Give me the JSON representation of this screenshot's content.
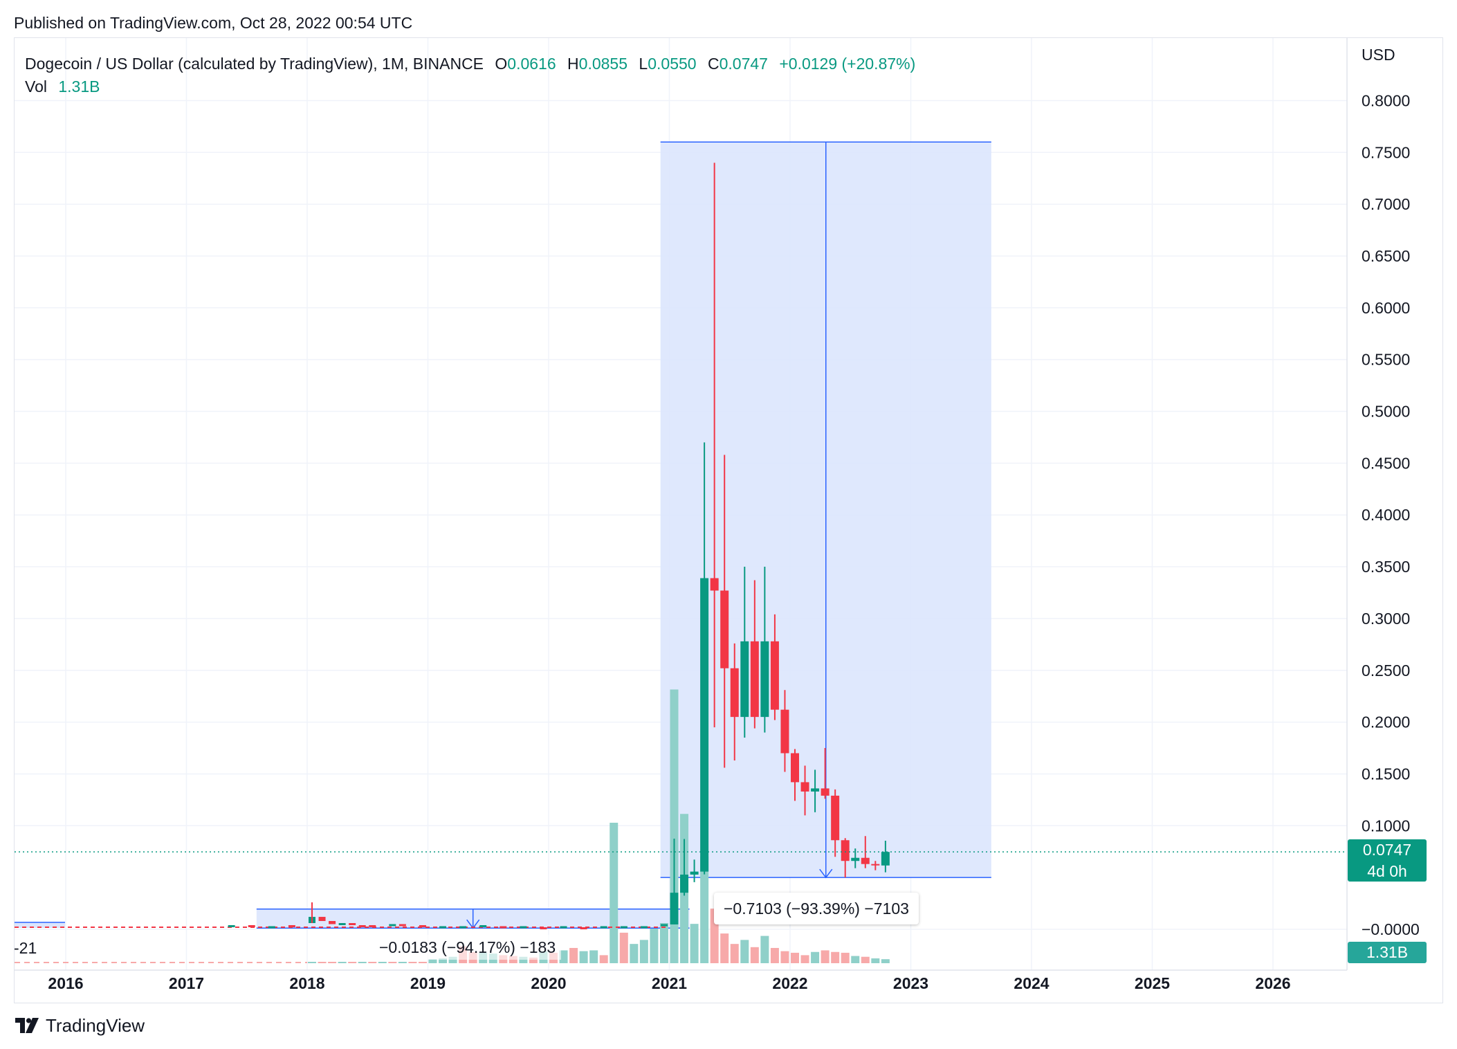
{
  "header": {
    "published": "Published on TradingView.com, Oct 28, 2022 00:54 UTC"
  },
  "legend": {
    "symbol": "Dogecoin / US Dollar (calculated by TradingView), 1M, BINANCE",
    "open_label": "O",
    "open": "0.0616",
    "high_label": "H",
    "high": "0.0855",
    "low_label": "L",
    "low": "0.0550",
    "close_label": "C",
    "close": "0.0747",
    "change": "+0.0129 (+20.87%)",
    "vol_label": "Vol",
    "vol": "1.31B"
  },
  "axis": {
    "currency": "USD"
  },
  "price_tag": {
    "value": "0.0747",
    "countdown": "4d 0h"
  },
  "vol_tag": "1.31B",
  "measurements": {
    "big": "−0.7103 (−93.39%) −7103",
    "small": "−0.0183 (−94.17%) −183",
    "left": "-21"
  },
  "brand": "TradingView",
  "colors": {
    "up": "#089981",
    "down": "#f23645",
    "vol_up": "#8fd0c9",
    "vol_down": "#f7a9a9",
    "measure_fill": "#dbe5fd",
    "measure_line": "#2962ff"
  },
  "chart_data": {
    "type": "candlestick",
    "title": "Dogecoin / US Dollar (calculated by TradingView), 1M, BINANCE",
    "timeframe": "1M",
    "ylabel": "USD",
    "ylim": [
      -0.01,
      0.84
    ],
    "y_ticks": [
      0.8,
      0.75,
      0.7,
      0.65,
      0.6,
      0.55,
      0.5,
      0.45,
      0.4,
      0.35,
      0.3,
      0.25,
      0.2,
      0.15,
      0.1,
      0.0
    ],
    "y_tick_labels": [
      "0.8000",
      "0.7500",
      "0.7000",
      "0.6500",
      "0.6000",
      "0.5500",
      "0.5000",
      "0.4500",
      "0.4000",
      "0.3500",
      "0.3000",
      "0.2500",
      "0.2000",
      "0.1500",
      "0.1000",
      "−0.0000"
    ],
    "x_ticks": [
      "2016",
      "2017",
      "2018",
      "2019",
      "2020",
      "2021",
      "2022",
      "2023",
      "2024",
      "2025",
      "2026"
    ],
    "candles": [
      {
        "t": "2021-01",
        "o": 0.0047,
        "h": 0.0875,
        "l": 0.0047,
        "c": 0.0353
      },
      {
        "t": "2021-02",
        "o": 0.0353,
        "h": 0.0872,
        "l": 0.0325,
        "c": 0.0528
      },
      {
        "t": "2021-03",
        "o": 0.0528,
        "h": 0.0673,
        "l": 0.0455,
        "c": 0.0557
      },
      {
        "t": "2021-04",
        "o": 0.0557,
        "h": 0.47,
        "l": 0.053,
        "c": 0.339
      },
      {
        "t": "2021-05",
        "o": 0.339,
        "h": 0.74,
        "l": 0.195,
        "c": 0.327
      },
      {
        "t": "2021-06",
        "o": 0.327,
        "h": 0.458,
        "l": 0.156,
        "c": 0.252
      },
      {
        "t": "2021-07",
        "o": 0.252,
        "h": 0.276,
        "l": 0.163,
        "c": 0.205
      },
      {
        "t": "2021-08",
        "o": 0.205,
        "h": 0.35,
        "l": 0.185,
        "c": 0.278
      },
      {
        "t": "2021-09",
        "o": 0.278,
        "h": 0.337,
        "l": 0.194,
        "c": 0.205
      },
      {
        "t": "2021-10",
        "o": 0.205,
        "h": 0.35,
        "l": 0.19,
        "c": 0.278
      },
      {
        "t": "2021-11",
        "o": 0.278,
        "h": 0.304,
        "l": 0.202,
        "c": 0.212
      },
      {
        "t": "2021-12",
        "o": 0.212,
        "h": 0.231,
        "l": 0.152,
        "c": 0.17
      },
      {
        "t": "2022-01",
        "o": 0.17,
        "h": 0.174,
        "l": 0.124,
        "c": 0.142
      },
      {
        "t": "2022-02",
        "o": 0.142,
        "h": 0.158,
        "l": 0.11,
        "c": 0.133
      },
      {
        "t": "2022-03",
        "o": 0.133,
        "h": 0.154,
        "l": 0.113,
        "c": 0.136
      },
      {
        "t": "2022-04",
        "o": 0.136,
        "h": 0.175,
        "l": 0.126,
        "c": 0.129
      },
      {
        "t": "2022-05",
        "o": 0.129,
        "h": 0.135,
        "l": 0.07,
        "c": 0.086
      },
      {
        "t": "2022-06",
        "o": 0.086,
        "h": 0.088,
        "l": 0.05,
        "c": 0.066
      },
      {
        "t": "2022-07",
        "o": 0.066,
        "h": 0.078,
        "l": 0.059,
        "c": 0.069
      },
      {
        "t": "2022-08",
        "o": 0.069,
        "h": 0.09,
        "l": 0.059,
        "c": 0.063
      },
      {
        "t": "2022-09",
        "o": 0.063,
        "h": 0.066,
        "l": 0.057,
        "c": 0.062
      },
      {
        "t": "2022-10",
        "o": 0.0616,
        "h": 0.0855,
        "l": 0.055,
        "c": 0.0747
      }
    ],
    "pre_2021_range": {
      "from": "2015-06",
      "to": "2020-12",
      "min_price": 0.0002,
      "max_price": 0.018
    },
    "volume": {
      "months": [
        "2018-01",
        "2018-02",
        "2018-03",
        "2018-04",
        "2018-05",
        "2018-06",
        "2018-07",
        "2018-08",
        "2018-09",
        "2018-10",
        "2018-11",
        "2018-12",
        "2019-01",
        "2019-02",
        "2019-03",
        "2019-04",
        "2019-05",
        "2019-06",
        "2019-07",
        "2019-08",
        "2019-09",
        "2019-10",
        "2019-11",
        "2019-12",
        "2020-01",
        "2020-02",
        "2020-03",
        "2020-04",
        "2020-05",
        "2020-06",
        "2020-07",
        "2020-08",
        "2020-09",
        "2020-10",
        "2020-11",
        "2020-12",
        "2021-01",
        "2021-02",
        "2021-03",
        "2021-04",
        "2021-05",
        "2021-06",
        "2021-07",
        "2021-08",
        "2021-09",
        "2021-10",
        "2021-11",
        "2021-12",
        "2022-01",
        "2022-02",
        "2022-03",
        "2022-04",
        "2022-05",
        "2022-06",
        "2022-07",
        "2022-08",
        "2022-09",
        "2022-10"
      ],
      "values": [
        0.1,
        0.1,
        0.1,
        0.1,
        0.1,
        0.1,
        0.1,
        0.1,
        0.1,
        0.1,
        0.1,
        0.1,
        0.5,
        0.6,
        0.8,
        2.1,
        1.4,
        1.3,
        1.2,
        1.0,
        0.9,
        0.8,
        0.7,
        1.5,
        1.3,
        1.6,
        1.9,
        1.5,
        1.6,
        1.0,
        17.5,
        3.8,
        2.4,
        2.9,
        4.3,
        5.0,
        34.1,
        18.6,
        4.9,
        13.3,
        6.8,
        3.7,
        2.4,
        2.9,
        2.0,
        3.4,
        1.9,
        1.5,
        1.3,
        1.0,
        1.4,
        1.6,
        1.4,
        1.3,
        0.9,
        0.8,
        0.6,
        0.5
      ],
      "directions": [
        "u",
        "d",
        "d",
        "u",
        "d",
        "u",
        "d",
        "u",
        "d",
        "u",
        "d",
        "d",
        "u",
        "u",
        "u",
        "d",
        "d",
        "u",
        "u",
        "d",
        "d",
        "u",
        "d",
        "u",
        "d",
        "u",
        "d",
        "u",
        "u",
        "d",
        "u",
        "d",
        "u",
        "u",
        "u",
        "u",
        "u",
        "u",
        "u",
        "u",
        "d",
        "d",
        "d",
        "u",
        "d",
        "u",
        "d",
        "d",
        "d",
        "d",
        "u",
        "d",
        "d",
        "d",
        "u",
        "d",
        "u",
        "u"
      ]
    },
    "measure_tools": [
      {
        "from": "2021-05",
        "to": "2023-09",
        "high": 0.76,
        "low": 0.05,
        "label": "−0.7103 (−93.39%) −7103"
      },
      {
        "from": "2017-09",
        "to": "2021-03",
        "high": 0.0195,
        "low": 0.0012,
        "label": "−0.0183 (−94.17%) −183"
      }
    ],
    "last_price": 0.0747,
    "last_volume": "1.31B",
    "grid": true
  }
}
